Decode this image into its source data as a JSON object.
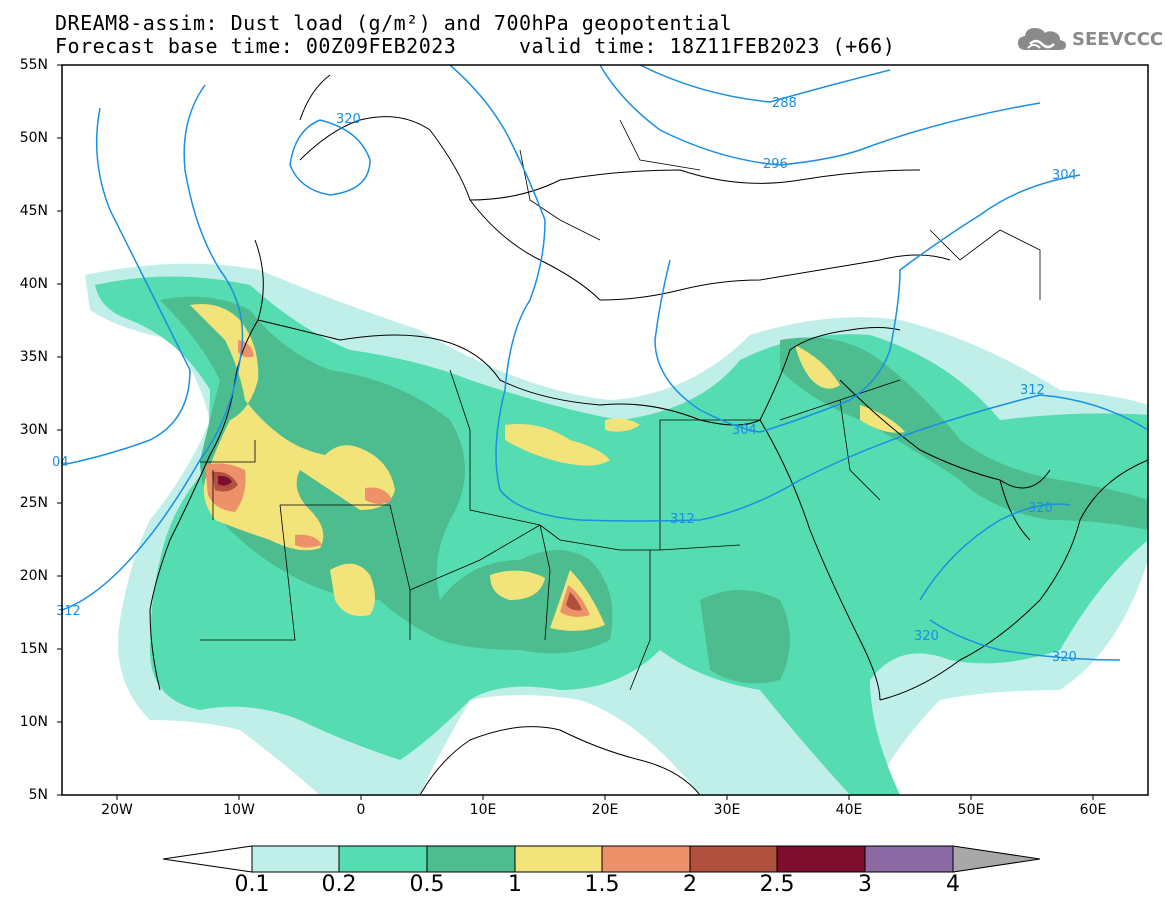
{
  "header": {
    "title_line1": "DREAM8-assim: Dust load (g/m²) and 700hPa geopotential",
    "title_line2": "Forecast base time: 00Z09FEB2023     valid time: 18Z11FEB2023 (+66)"
  },
  "logo": {
    "text": "SEEVCCC",
    "icon": "cloud-icon"
  },
  "map": {
    "lat_labels": [
      "55N",
      "50N",
      "45N",
      "40N",
      "35N",
      "30N",
      "25N",
      "20N",
      "15N",
      "10N",
      "5N"
    ],
    "lon_labels": [
      "20W",
      "10W",
      "0",
      "10E",
      "20E",
      "30E",
      "40E",
      "50E",
      "60E"
    ],
    "geopotential_labels": [
      "320",
      "288",
      "296",
      "304",
      "312",
      "304",
      "312",
      "312",
      "320",
      "320",
      "320",
      "04"
    ],
    "colors": {
      "c1": "#bfefe8",
      "c2": "#55dcb1",
      "c3": "#4dbd8f",
      "c4": "#f2e47a",
      "c5": "#ec916a",
      "c6": "#b0503e",
      "c7": "#7e0d2e",
      "c8": "#8b6aa3",
      "c9": "#a8a8a8",
      "contour": "#1a8fe3"
    }
  },
  "colorbar": {
    "labels": [
      "0.1",
      "0.2",
      "0.5",
      "1",
      "1.5",
      "2",
      "2.5",
      "3",
      "4"
    ]
  }
}
